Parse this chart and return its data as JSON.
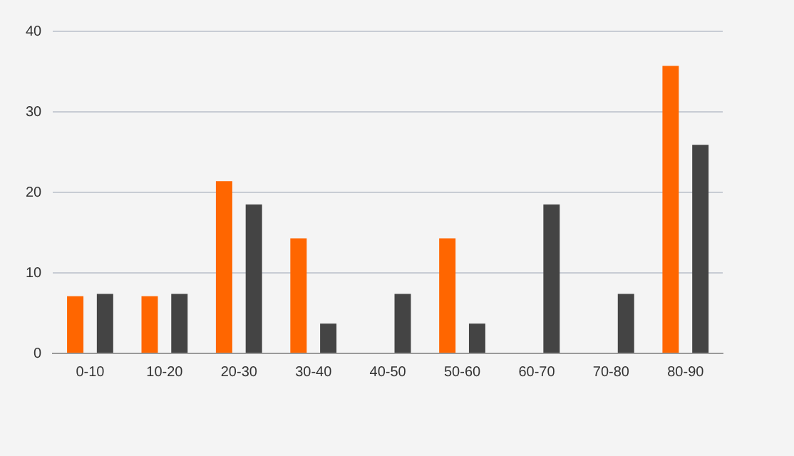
{
  "chart_data": {
    "type": "bar",
    "categories": [
      "0-10",
      "10-20",
      "20-30",
      "30-40",
      "40-50",
      "50-60",
      "60-70",
      "70-80",
      "80-90"
    ],
    "series": [
      {
        "color": "#ff6600",
        "values": [
          7.1,
          7.1,
          21.4,
          14.3,
          0,
          14.3,
          0,
          0,
          35.7
        ]
      },
      {
        "color": "#444444",
        "values": [
          7.4,
          7.4,
          18.5,
          3.7,
          7.4,
          3.7,
          18.5,
          7.4,
          25.9
        ]
      }
    ],
    "ylim": [
      0,
      40
    ],
    "yticks": [
      0,
      10,
      20,
      30,
      40
    ],
    "grid": "y"
  }
}
